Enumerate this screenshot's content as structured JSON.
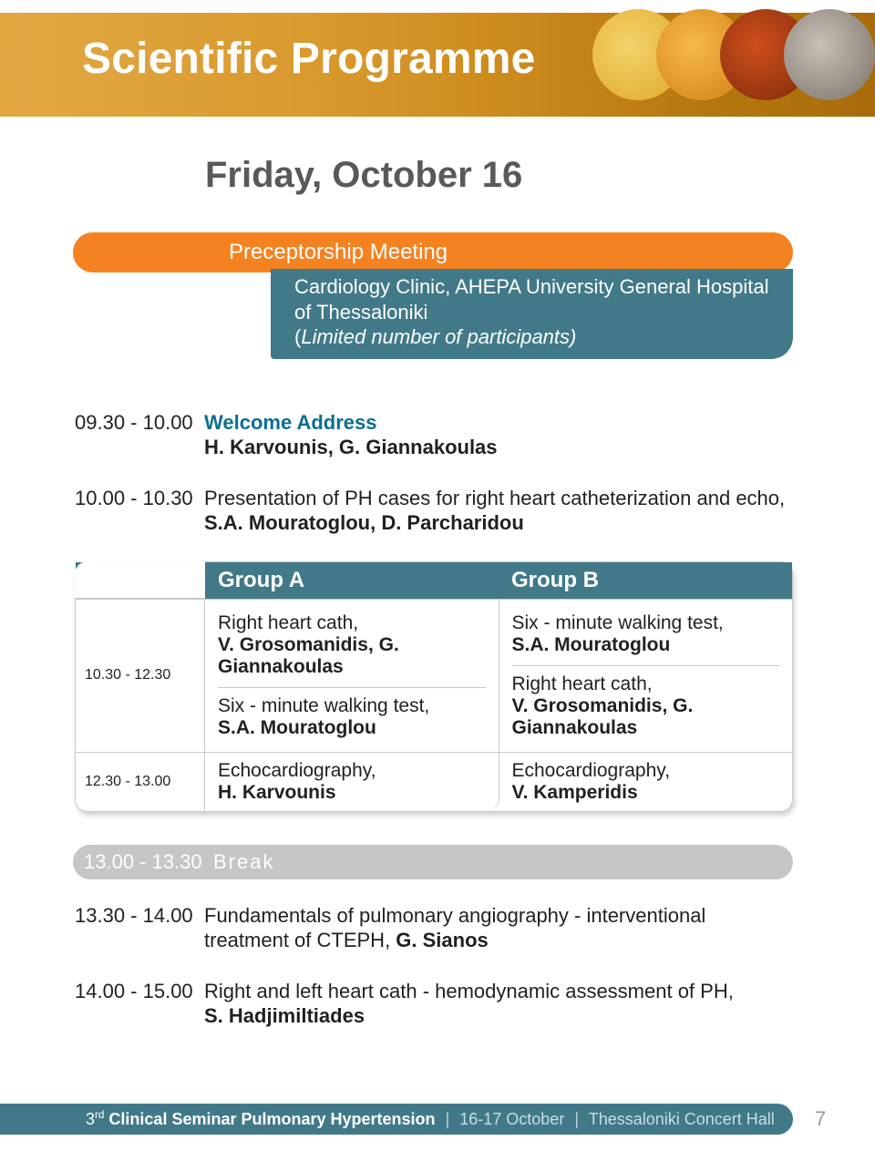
{
  "colors": {
    "accent_teal": "#417989",
    "orange": "#f58220",
    "grey_text": "#58595b",
    "light_grey_bar": "#c4c6c8",
    "body_text": "#231f20",
    "accent_blue_text": "#0b6e8f"
  },
  "header": {
    "title": "Scientific Programme"
  },
  "day": "Friday, October 16",
  "preceptor": {
    "label": "Preceptorship Meeting",
    "venue": "Cardiology Clinic, AHEPA University General Hospital of Thessaloniki",
    "note_prefix": "(",
    "note": "Limited number of participants)",
    "note_combined": "(Limited number of participants)"
  },
  "schedule": {
    "r1": {
      "time": "09.30 - 10.00",
      "title": "Welcome Address",
      "speakers": "H. Karvounis, G. Giannakoulas"
    },
    "r2": {
      "time": "10.00 - 10.30",
      "title": "Presentation of PH cases for right heart catheterization and echo,",
      "speakers": "S.A. Mouratoglou, D. Parcharidou"
    }
  },
  "groups": {
    "header_a": "Group A",
    "header_b": "Group B",
    "row1": {
      "time": "10.30 - 12.30",
      "a1_title": "Right heart cath,",
      "a1_speakers": "V. Grosomanidis, G. Giannakoulas",
      "a2_title": "Six - minute walking test,",
      "a2_speakers": "S.A. Mouratoglou",
      "b1_title": "Six - minute walking test,",
      "b1_speakers": "S.A. Mouratoglou",
      "b2_title": "Right heart cath,",
      "b2_speakers": "V. Grosomanidis, G. Giannakoulas"
    },
    "row2": {
      "time": "12.30 - 13.00",
      "a_title": "Echocardiography,",
      "a_speakers": "H. Karvounis",
      "b_title": "Echocardiography,",
      "b_speakers": "V. Kamperidis"
    }
  },
  "break": {
    "time": "13.00 - 13.30",
    "label": "Break"
  },
  "after": {
    "r1": {
      "time": "13.30 - 14.00",
      "text": "Fundamentals of pulmonary angiography - interventional treatment of CTEPH, ",
      "speaker": "G. Sianos"
    },
    "r2": {
      "time": "14.00 - 15.00",
      "text": "Right and left heart cath - hemodynamic assessment of PH,",
      "speaker": "S. Hadjimiltiades"
    }
  },
  "footer": {
    "ord": "3",
    "sup": "rd",
    "bold": " Clinical Seminar Pulmonary Hypertension",
    "light1": "16-17 October",
    "light2": "Thessaloniki Concert Hall",
    "page": "7"
  }
}
